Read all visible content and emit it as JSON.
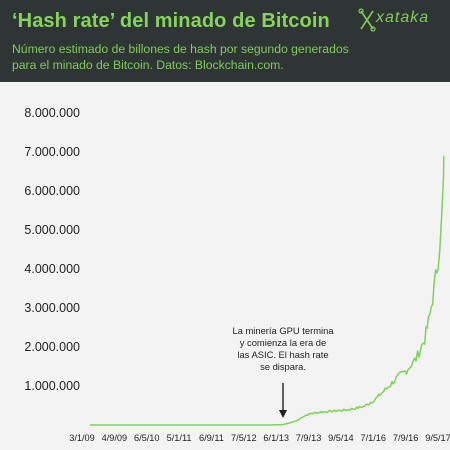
{
  "header": {
    "title": "‘Hash rate’ del minado de Bitcoin",
    "subtitle": "Número estimado de billones de hash por segundo generados para el minado de Bitcoin. Datos: Blockchain.com.",
    "logo_text": "xataka"
  },
  "colors": {
    "header_bg": "#2f3534",
    "accent": "#86d35d",
    "line": "#7fd157",
    "text": "#1f1f1f"
  },
  "chart_data": {
    "type": "line",
    "title": "‘Hash rate’ del minado de Bitcoin",
    "xlabel": "",
    "ylabel": "",
    "ylim": [
      0,
      8000000
    ],
    "yticks": [
      1000000,
      2000000,
      3000000,
      4000000,
      5000000,
      6000000,
      7000000,
      8000000
    ],
    "ytick_labels": [
      "1.000.000",
      "2.000.000",
      "3.000.000",
      "4.000.000",
      "5.000.000",
      "6.000.000",
      "7.000.000",
      "8.000.000"
    ],
    "xtick_labels": [
      "3/1/09",
      "4/9/09",
      "6/5/10",
      "5/1/11",
      "6/9/11",
      "7/5/12",
      "6/1/13",
      "7/9/13",
      "9/5/14",
      "7/1/16",
      "7/9/16",
      "9/5/17"
    ],
    "grid": false,
    "legend": "none",
    "series": [
      {
        "x": [
          "2009-01-03",
          "2011-06-09",
          "2012-07-05",
          "2013-01-06",
          "2013-05-15",
          "2013-09-07",
          "2013-11-15",
          "2014-01-15",
          "2014-03-15",
          "2014-05-09",
          "2014-08-01",
          "2014-11-01",
          "2015-03-01",
          "2015-06-01",
          "2015-09-01",
          "2015-12-01",
          "2016-03-01",
          "2016-07-01",
          "2016-09-07",
          "2016-12-01",
          "2017-02-15",
          "2017-04-01",
          "2017-05-09",
          "2017-06-15",
          "2017-07-15",
          "2017-08-01",
          "2017-08-05"
        ],
        "y": [
          0,
          0,
          0,
          0,
          0,
          10000,
          60000,
          120000,
          230000,
          290000,
          330000,
          350000,
          380000,
          420000,
          480000,
          650000,
          900000,
          1250000,
          1400000,
          1700000,
          2200000,
          2800000,
          3500000,
          4300000,
          5200000,
          6200000,
          6900000
        ]
      }
    ],
    "annotations": [
      {
        "lines": [
          "La minería GPU termina",
          "y comienza la era de",
          "las ASIC. El hash rate",
          "se dispara."
        ],
        "x": "2013-01-06"
      }
    ]
  }
}
